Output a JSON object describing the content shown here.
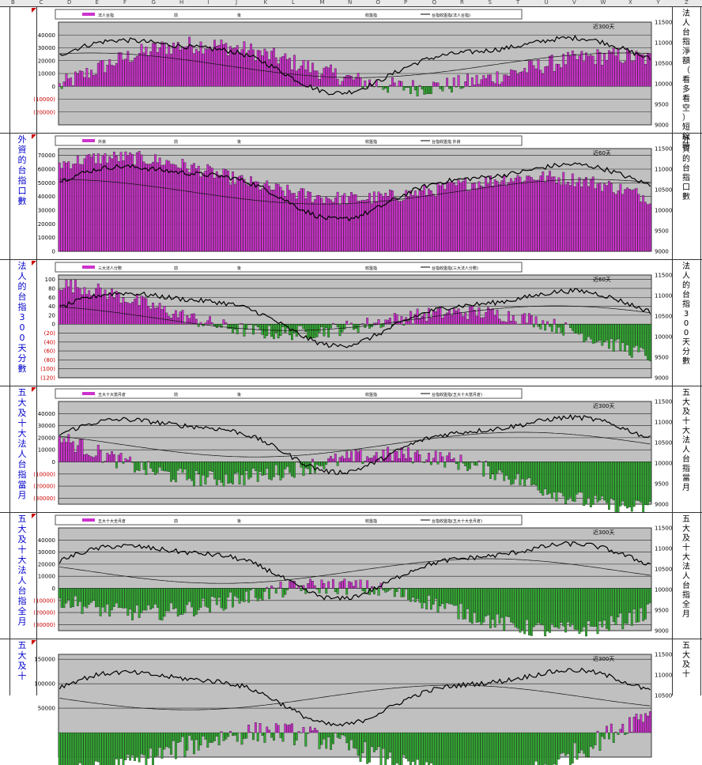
{
  "columns": [
    "B",
    "C",
    "D",
    "E",
    "F",
    "G",
    "H",
    "I",
    "J",
    "K",
    "L",
    "M",
    "N",
    "O",
    "P",
    "Q",
    "R",
    "S",
    "T",
    "U",
    "V",
    "W",
    "X",
    "Y",
    "Z"
  ],
  "colors": {
    "pos": "#cc33cc",
    "neg": "#33aa33",
    "plot_bg": "#c0c0c0",
    "red_tick": "#cc0000"
  },
  "panels": [
    {
      "left_caption": "",
      "right_caption": "法人台指淨額（看多看空）短線時",
      "legend": [
        "法人台指",
        "前",
        "後",
        "收盤指",
        "台指收盤指(法人台指)"
      ],
      "tag": "近300天",
      "y_left": [
        "40000",
        "30000",
        "20000",
        "10000",
        "0",
        "(10000)",
        "(20000)"
      ],
      "y_right": [
        "11500",
        "11000",
        "10500",
        "10000",
        "9500",
        "9000"
      ],
      "ylim": [
        -30000,
        50000
      ]
    },
    {
      "left_caption": "外資的台指口數",
      "right_caption": "外資的台指口數",
      "legend": [
        "外資",
        "前",
        "後",
        "收盤指",
        "台指收盤指 外資"
      ],
      "tag": "近60天",
      "y_left": [
        "70000",
        "60000",
        "50000",
        "40000",
        "30000",
        "20000",
        "10000",
        "0"
      ],
      "y_right": [
        "11500",
        "11000",
        "10500",
        "10000",
        "9500",
        "9000"
      ],
      "ylim": [
        0,
        75000
      ]
    },
    {
      "left_caption": "法人的台指300天分數",
      "right_caption": "法人的台指300天分數",
      "legend": [
        "三大法人分數",
        "前",
        "後",
        "收盤指",
        "台指收盤指(三大法人分數)"
      ],
      "tag": "近60天",
      "y_left": [
        "100",
        "80",
        "60",
        "40",
        "20",
        "0",
        "(20)",
        "(40)",
        "(60)",
        "(80)",
        "(100)",
        "(120)"
      ],
      "y_right": [
        "11500",
        "11000",
        "10500",
        "10000",
        "9500",
        "9000"
      ],
      "ylim": [
        -120,
        110
      ]
    },
    {
      "left_caption": "五大及十大法人台指當月",
      "right_caption": "五大及十大法人台指當月",
      "legend": [
        "五大十大當月倉",
        "前",
        "後",
        "收盤指",
        "台指收盤指(五大十大當月倉)"
      ],
      "tag": "近300天",
      "y_left": [
        "40000",
        "30000",
        "20000",
        "10000",
        "0",
        "(10000)",
        "(20000)",
        "(30000)"
      ],
      "y_right": [
        "11500",
        "11000",
        "10500",
        "10000",
        "9500",
        "9000"
      ],
      "ylim": [
        -35000,
        50000
      ]
    },
    {
      "left_caption": "五大及十大法人台指全月",
      "right_caption": "五大及十大法人台指全月",
      "legend": [
        "五大十大全月倉",
        "前",
        "後",
        "收盤指",
        "台指收盤指(五大十大全月倉)"
      ],
      "tag": "近300天",
      "y_left": [
        "40000",
        "30000",
        "20000",
        "10000",
        "0",
        "(10000)",
        "(20000)",
        "(30000)"
      ],
      "y_right": [
        "11500",
        "11000",
        "10500",
        "10000",
        "9500",
        "9000"
      ],
      "ylim": [
        -35000,
        50000
      ]
    },
    {
      "left_caption": "五大及十",
      "right_caption": "五大及十",
      "legend": [],
      "tag": "近300天",
      "y_left": [
        "150000",
        "100000",
        "50000"
      ],
      "y_right": [
        "11500",
        "11000",
        "10500"
      ],
      "ylim": [
        -50000,
        160000
      ]
    }
  ],
  "chart_data": [
    {
      "type": "bar+line",
      "title": "法人台指",
      "series_bars_key": 0
    },
    {
      "type": "bar+line",
      "title": "外資",
      "series_bars_key": 1
    },
    {
      "type": "bar+line",
      "title": "三大法人分數",
      "series_bars_key": 2
    },
    {
      "type": "bar+line",
      "title": "五大十大當月倉",
      "series_bars_key": 3
    },
    {
      "type": "bar+line",
      "title": "五大十大全月倉",
      "series_bars_key": 4
    },
    {
      "type": "bar+line",
      "title": "",
      "series_bars_key": 5
    }
  ]
}
